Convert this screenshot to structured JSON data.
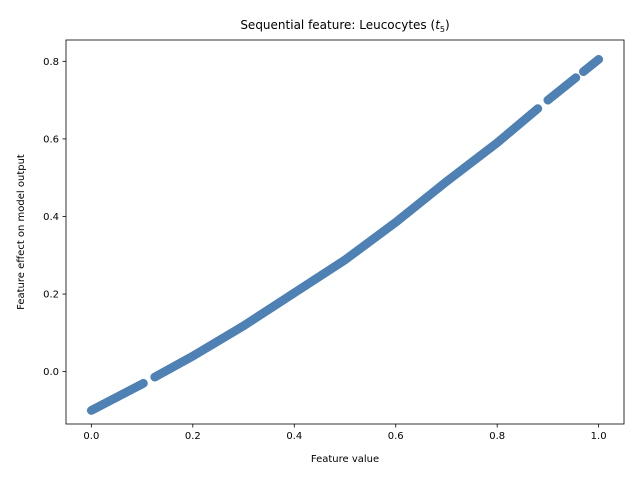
{
  "chart_data": {
    "type": "scatter",
    "title": "Sequential feature: Leucocytes (",
    "title_var": "t",
    "title_sub": "5",
    "title_close": ")",
    "xlabel": "Feature value",
    "ylabel": "Feature effect on model output",
    "xlim": [
      -0.05,
      1.05
    ],
    "ylim": [
      -0.135,
      0.855
    ],
    "xticks": [
      0.0,
      0.2,
      0.4,
      0.6,
      0.8,
      1.0
    ],
    "xtick_labels": [
      "0.0",
      "0.2",
      "0.4",
      "0.6",
      "0.8",
      "1.0"
    ],
    "yticks": [
      0.0,
      0.2,
      0.4,
      0.6,
      0.8
    ],
    "ytick_labels": [
      "0.0",
      "0.2",
      "0.4",
      "0.6",
      "0.8"
    ],
    "grid": false,
    "marker_color": "#4f81b4",
    "x_gaps": [
      [
        0.103,
        0.125
      ],
      [
        0.881,
        0.898
      ],
      [
        0.955,
        0.97
      ]
    ],
    "series": [
      {
        "x": [
          0.0,
          0.1,
          0.2,
          0.3,
          0.4,
          0.5,
          0.6,
          0.7,
          0.8,
          0.9,
          1.0
        ],
        "y": [
          -0.1,
          -0.032,
          0.04,
          0.118,
          0.203,
          0.288,
          0.385,
          0.49,
          0.59,
          0.7,
          0.805
        ]
      }
    ]
  }
}
